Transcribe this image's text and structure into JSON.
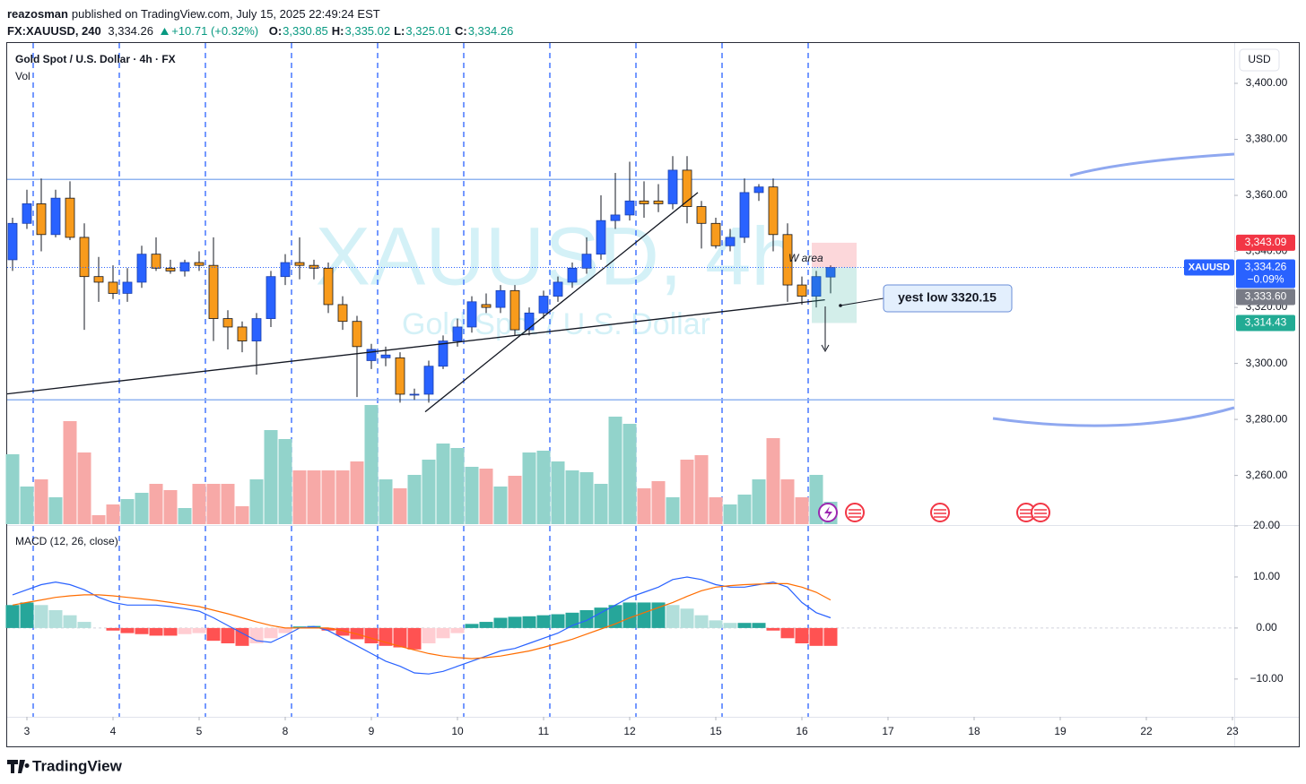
{
  "header": {
    "author": "reazosman",
    "published": "published on TradingView.com, July 15, 2025 22:49:24 EST",
    "symbol": "FX:XAUUSD, 240",
    "last": "3,334.26",
    "change": "+10.71 (+0.32%)",
    "ohlc": [
      {
        "key": "O:",
        "value": "3,330.85"
      },
      {
        "key": "H:",
        "value": "3,335.02"
      },
      {
        "key": "L:",
        "value": "3,325.01"
      },
      {
        "key": "C:",
        "value": "3,334.26"
      }
    ]
  },
  "footer": "TradingView",
  "chart_data": {
    "type": "candlestick",
    "title": "Gold Spot / U.S. Dollar · 4h · FX",
    "volume_label": "Vol",
    "currency": "USD",
    "watermark": "XAUUSD, 4h",
    "watermark_sub": "Gold Spot / U.S. Dollar",
    "up_color": "#2962ff",
    "down_color": "#f89b1c",
    "volume_up_color": "#92d3cb",
    "volume_down_color": "#f7a9a7",
    "open": [
      3337,
      3350,
      3357,
      3346,
      3359,
      3345,
      3331,
      3329,
      3325,
      3329,
      3339,
      3334,
      3333,
      3336,
      3335,
      3316,
      3313,
      3308,
      3316,
      3331,
      3336,
      3335,
      3334,
      3321,
      3315,
      3301,
      3302,
      3302,
      3289,
      3289,
      3299,
      3308,
      3313,
      3321,
      3320,
      3326,
      3312,
      3318,
      3324,
      3329,
      3334,
      3339,
      3351,
      3353,
      3358,
      3358,
      3357,
      3369,
      3356,
      3350,
      3342,
      3345,
      3361,
      3363,
      3346,
      3328,
      3324,
      3330.85
    ],
    "high": [
      3352,
      3362,
      3366,
      3362,
      3365,
      3350,
      3338,
      3335,
      3334,
      3342,
      3345,
      3337,
      3337,
      3340,
      3345,
      3319,
      3315,
      3318,
      3333,
      3339,
      3345,
      3337,
      3336,
      3324,
      3317,
      3307,
      3306,
      3304,
      3291,
      3301,
      3310,
      3316,
      3324,
      3325,
      3328,
      3328,
      3320,
      3326,
      3331,
      3336,
      3345,
      3360,
      3368,
      3372,
      3365,
      3364,
      3374,
      3374,
      3358,
      3352,
      3348,
      3366,
      3364,
      3366,
      3350,
      3331,
      3333,
      3335.02
    ],
    "low": [
      3333,
      3348,
      3340,
      3345,
      3344,
      3312,
      3322,
      3323,
      3322,
      3327,
      3333,
      3332,
      3331,
      3333,
      3308,
      3305,
      3304,
      3296,
      3313,
      3328,
      3330,
      3330,
      3318,
      3312,
      3288,
      3298,
      3299,
      3286,
      3287,
      3286,
      3298,
      3306,
      3311,
      3318,
      3318,
      3310,
      3310,
      3316,
      3322,
      3327,
      3332,
      3337,
      3348,
      3351,
      3352,
      3354,
      3355,
      3350,
      3341,
      3341,
      3340,
      3343,
      3358,
      3340,
      3322,
      3321,
      3320,
      3325.01
    ],
    "close": [
      3350,
      3357,
      3346,
      3359,
      3345,
      3331,
      3329,
      3325,
      3329,
      3339,
      3334,
      3333,
      3336,
      3335,
      3316,
      3313,
      3308,
      3316,
      3331,
      3336,
      3335,
      3334,
      3321,
      3315,
      3306,
      3305,
      3303,
      3289,
      3289,
      3299,
      3308,
      3313,
      3322,
      3320,
      3326,
      3312,
      3318,
      3324,
      3329,
      3334,
      3339,
      3351,
      3353,
      3358,
      3357,
      3357,
      3369,
      3356,
      3350,
      3342,
      3345,
      3361,
      3363,
      3346,
      3328,
      3324,
      3331,
      3334.26
    ],
    "volume": [
      78,
      42,
      50,
      30,
      115,
      80,
      10,
      22,
      28,
      35,
      45,
      38,
      18,
      45,
      45,
      45,
      20,
      50,
      105,
      95,
      60,
      60,
      60,
      60,
      70,
      133,
      50,
      40,
      55,
      72,
      90,
      85,
      64,
      62,
      42,
      54,
      80,
      82,
      70,
      60,
      58,
      45,
      120,
      112,
      40,
      48,
      30,
      72,
      77,
      30,
      22,
      33,
      50,
      96,
      50,
      30,
      55,
      25
    ],
    "xlim": [
      -0.375,
      85.125
    ],
    "xticks": [
      {
        "value": 1,
        "label": "3"
      },
      {
        "value": 7,
        "label": "4"
      },
      {
        "value": 13,
        "label": "5"
      },
      {
        "value": 19,
        "label": "8"
      },
      {
        "value": 25,
        "label": "9"
      },
      {
        "value": 31,
        "label": "10"
      },
      {
        "value": 37,
        "label": "11"
      },
      {
        "value": 43,
        "label": "12"
      },
      {
        "value": 49,
        "label": "15"
      },
      {
        "value": 55,
        "label": "16"
      },
      {
        "value": 61,
        "label": "17"
      },
      {
        "value": 67,
        "label": "18"
      },
      {
        "value": 73,
        "label": "19"
      },
      {
        "value": 79,
        "label": "22"
      },
      {
        "value": 85,
        "label": "23"
      }
    ],
    "ylim": [
      3242.6,
      3414.4
    ],
    "yticks": [
      {
        "value": 3260,
        "label": "3,260.00"
      },
      {
        "value": 3280,
        "label": "3,280.00"
      },
      {
        "value": 3300,
        "label": "3,300.00"
      },
      {
        "value": 3320,
        "label": "3,320.00"
      },
      {
        "value": 3340,
        "label": "3,340.00"
      },
      {
        "value": 3360,
        "label": "3,360.00"
      },
      {
        "value": 3380,
        "label": "3,380.00"
      },
      {
        "value": 3400,
        "label": "3,400.00"
      }
    ],
    "hlines": [
      3365.7,
      3287
    ],
    "hline_color": "#90b4f0",
    "trendlines": [
      {
        "x": [
          -0.375,
          56.6
        ],
        "y": [
          3289.1,
          3322.7
        ]
      },
      {
        "x": [
          28.75,
          47.75
        ],
        "y": [
          3282.7,
          3361
        ]
      }
    ],
    "symbol_tag": "XAUUSD",
    "price_tags": [
      {
        "value": 3343.09,
        "label": "3,343.09",
        "color": "#f23645"
      },
      {
        "value": 3334.26,
        "label": "3,334.26",
        "color": "#2962ff"
      },
      {
        "value": 3333.6,
        "label": "3,333.60",
        "color": "#787b86"
      },
      {
        "value": 3314.43,
        "label": "3,314.43",
        "color": "#22ab94"
      }
    ],
    "last_change": {
      "value": -0.09,
      "label": "−0.09%"
    },
    "annotations": [
      "W area",
      "yest low 3320.15"
    ],
    "macd": {
      "title": "MACD (12, 26, close)",
      "ylim": [
        -17.4,
        20
      ],
      "yticks": [
        {
          "value": -10,
          "label": "−10.00"
        },
        {
          "value": 0,
          "label": "0.00"
        },
        {
          "value": 10,
          "label": "10.00"
        },
        {
          "value": 20,
          "label": "20.00"
        }
      ],
      "macd_color": "#2962ff",
      "signal_color": "#ff6d00",
      "hist_colors": {
        "pos_up": "#26a69a",
        "pos_down": "#b2dfdb",
        "neg_down": "#ff5252",
        "neg_up": "#ffcdd2"
      },
      "macd": [
        6.5,
        7.5,
        8.5,
        9,
        8.5,
        7.5,
        6,
        5,
        4.5,
        4.5,
        4.5,
        4.2,
        3.8,
        3.3,
        2,
        0.5,
        -1,
        -2.5,
        -2.8,
        -1.5,
        0,
        0.3,
        -0.5,
        -2,
        -3.5,
        -5,
        -6.5,
        -7.5,
        -8.8,
        -9,
        -8.5,
        -7.5,
        -6.5,
        -5.5,
        -4.5,
        -4,
        -3,
        -2,
        -1,
        0.5,
        1.5,
        3,
        4.5,
        6,
        7,
        8,
        9.5,
        10,
        9.5,
        8.5,
        8,
        8,
        8.5,
        9,
        8,
        5,
        3,
        2
      ],
      "signal": [
        4.5,
        5,
        5.5,
        6,
        6.3,
        6.5,
        6.5,
        6.3,
        6,
        5.7,
        5.4,
        5,
        4.6,
        4.2,
        3.5,
        2.8,
        2,
        1.2,
        0.5,
        0,
        0,
        0,
        0,
        -0.5,
        -1.2,
        -2,
        -2.8,
        -3.6,
        -4.3,
        -5,
        -5.5,
        -5.8,
        -6,
        -5.8,
        -5.5,
        -5,
        -4.5,
        -3.8,
        -3,
        -2.2,
        -1.2,
        -0.2,
        0.8,
        2,
        3,
        4,
        5,
        6.2,
        7.3,
        8,
        8.3,
        8.5,
        8.6,
        8.7,
        8.7,
        8,
        7,
        5.5
      ],
      "hist": [
        4.5,
        5,
        4.5,
        3.5,
        2.5,
        1.2,
        0,
        -0.5,
        -1,
        -1.2,
        -1.5,
        -1.5,
        -1.2,
        -1,
        -2.5,
        -3,
        -3.5,
        -3,
        -2,
        -1,
        0.3,
        0.4,
        -0.5,
        -1.5,
        -2.2,
        -3,
        -3.5,
        -3.8,
        -4.2,
        -3,
        -2,
        -1,
        0.8,
        1.2,
        2,
        2.2,
        2.3,
        2.5,
        2.7,
        3,
        3.5,
        4,
        4.5,
        5,
        5,
        5,
        4.5,
        3.8,
        2.5,
        1.5,
        1,
        1,
        1,
        -0.5,
        -2,
        -3,
        -3.5,
        -3.5
      ]
    }
  }
}
